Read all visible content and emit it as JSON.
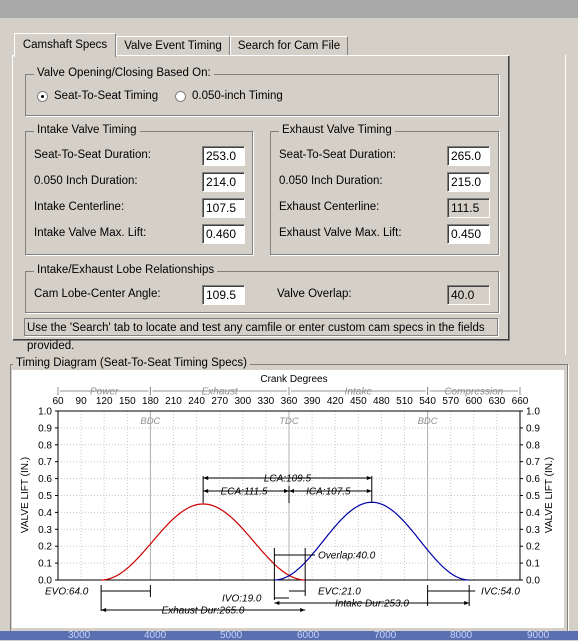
{
  "tabs": [
    {
      "label": "Camshaft Specs",
      "active": true
    },
    {
      "label": "Valve Event Timing",
      "active": false
    },
    {
      "label": "Search for Cam File",
      "active": false
    }
  ],
  "timing_basis": {
    "title": "Valve Opening/Closing Based On:",
    "options": [
      {
        "label": "Seat-To-Seat Timing",
        "selected": true
      },
      {
        "label": "0.050-inch Timing",
        "selected": false
      }
    ]
  },
  "intake": {
    "title": "Intake Valve Timing",
    "seat_label": "Seat-To-Seat Duration:",
    "seat_value": "253.0",
    "d050_label": "0.050 Inch Duration:",
    "d050_value": "214.0",
    "cl_label": "Intake Centerline:",
    "cl_value": "107.5",
    "lift_label": "Intake Valve Max. Lift:",
    "lift_value": "0.460"
  },
  "exhaust": {
    "title": "Exhaust Valve Timing",
    "seat_label": "Seat-To-Seat Duration:",
    "seat_value": "265.0",
    "d050_label": "0.050 Inch Duration:",
    "d050_value": "215.0",
    "cl_label": "Exhaust Centerline:",
    "cl_value": "111.5",
    "lift_label": "Exhaust Valve Max. Lift:",
    "lift_value": "0.450"
  },
  "lobe": {
    "title": "Intake/Exhaust Lobe Relationships",
    "lca_label": "Cam Lobe-Center Angle:",
    "lca_value": "109.5",
    "overlap_label": "Valve Overlap:",
    "overlap_value": "40.0"
  },
  "note": "Use the 'Search' tab to locate and test any camfile or enter custom cam specs in the fields provided.",
  "diagram": {
    "title": "Timing Diagram (Seat-To-Seat Timing Specs)",
    "xlabel": "Crank Degrees",
    "ylabel": "VALVE LIFT (IN.)",
    "x_ticks": [
      60,
      90,
      120,
      150,
      180,
      210,
      240,
      270,
      300,
      330,
      360,
      390,
      420,
      450,
      480,
      510,
      540,
      570,
      600,
      630,
      660
    ],
    "y_ticks": [
      "1.0",
      "0.9",
      "0.8",
      "0.7",
      "0.6",
      "0.5",
      "0.4",
      "0.3",
      "0.2",
      "0.1",
      "0.0"
    ],
    "strokes": [
      {
        "label": "Power",
        "from": 60,
        "to": 180
      },
      {
        "label": "Exhaust",
        "from": 180,
        "to": 360
      },
      {
        "label": "Intake",
        "from": 360,
        "to": 540
      },
      {
        "label": "Compression",
        "from": 540,
        "to": 660
      }
    ],
    "markers": [
      {
        "label": "BDC",
        "at": 180
      },
      {
        "label": "TDC",
        "at": 360
      },
      {
        "label": "BDC",
        "at": 540
      }
    ],
    "exhaust_curve": {
      "open": 116,
      "close": 381,
      "peak_at": 248.5,
      "peak_lift": 0.45,
      "color": "#cc0000"
    },
    "intake_curve": {
      "open": 341,
      "close": 594,
      "peak_at": 467.5,
      "peak_lift": 0.46,
      "color": "#0000aa"
    },
    "annotations": {
      "lca": "LCA:109.5",
      "eca": "ECA:111.5",
      "ica": "ICA:107.5",
      "overlap": "Overlap:40.0",
      "evo": "EVO:64.0",
      "ivo": "IVO:19.0",
      "evc": "EVC:21.0",
      "ivc": "IVC:54.0",
      "exhaust_dur": "Exhaust Dur:265.0",
      "intake_dur": "Intake Dur:253.0"
    }
  },
  "bottom_ticks": [
    "3000",
    "4000",
    "5000",
    "6000",
    "7000",
    "8000",
    "9000"
  ]
}
